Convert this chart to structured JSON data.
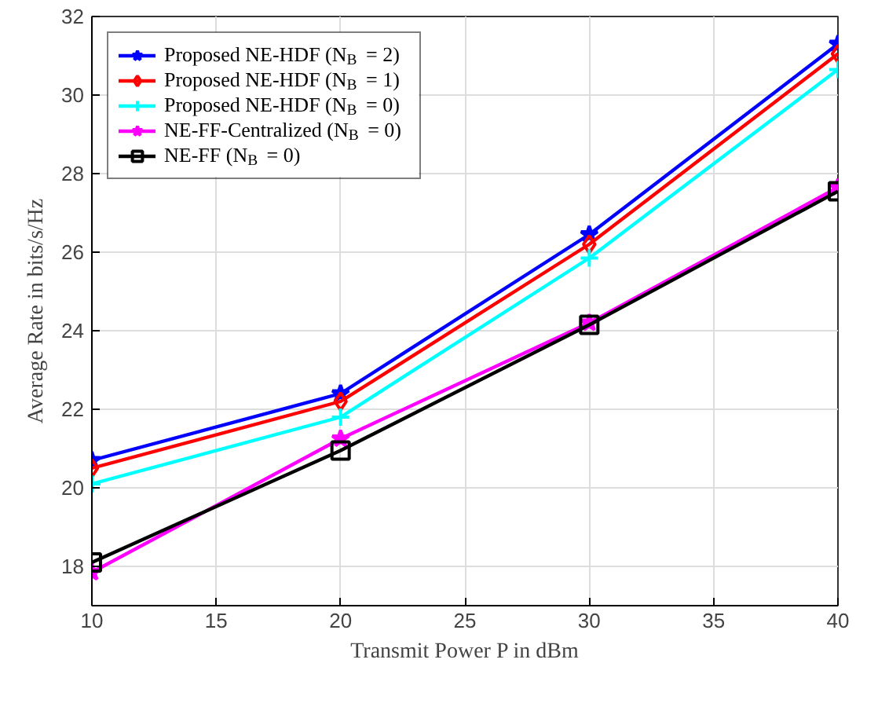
{
  "chart_data": {
    "type": "line",
    "xlabel": "Transmit Power P in dBm",
    "ylabel": "Average Rate in bits/s/Hz",
    "x": [
      10,
      20,
      30,
      40
    ],
    "series": [
      {
        "name": "Proposed NE-HDF (N$_{B}$ = 2)",
        "color": "#0000ff",
        "marker": "star",
        "values": [
          20.7,
          22.4,
          26.45,
          31.3
        ]
      },
      {
        "name": "Proposed NE-HDF (N$_{B}$ = 1)",
        "color": "#ff0000",
        "marker": "diamond",
        "values": [
          20.5,
          22.2,
          26.2,
          31.05
        ]
      },
      {
        "name": "Proposed NE-HDF (N$_{B}$ = 0)",
        "color": "#00ffff",
        "marker": "cross",
        "values": [
          20.1,
          21.8,
          25.85,
          30.65
        ]
      },
      {
        "name": "NE-FF-Centralized (N$_{B}$ = 0)",
        "color": "#ff00ff",
        "marker": "star",
        "values": [
          17.85,
          21.25,
          24.2,
          27.65
        ]
      },
      {
        "name": "NE-FF (N$_{B}$ = 0)",
        "color": "#000000",
        "marker": "square",
        "values": [
          18.1,
          20.95,
          24.15,
          27.55
        ]
      }
    ],
    "xlim": [
      10,
      40
    ],
    "ylim": [
      17,
      32
    ],
    "xticks": [
      10,
      15,
      20,
      25,
      30,
      35,
      40
    ],
    "yticks": [
      18,
      20,
      22,
      24,
      26,
      28,
      30,
      32
    ],
    "grid": true,
    "legend": "top left",
    "line_style": "solid"
  }
}
